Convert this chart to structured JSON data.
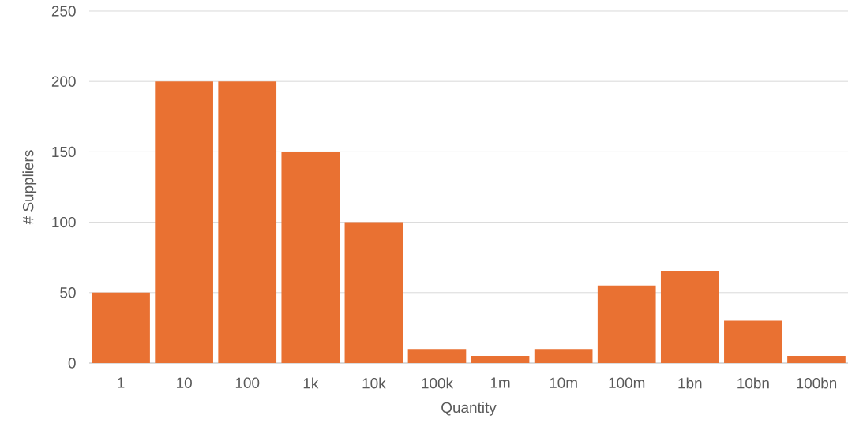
{
  "chart_data": {
    "type": "bar",
    "xlabel": "Quantity",
    "ylabel": "# Suppliers",
    "categories": [
      "1",
      "10",
      "100",
      "1k",
      "10k",
      "100k",
      "1m",
      "10m",
      "100m",
      "1bn",
      "10bn",
      "100bn"
    ],
    "values": [
      50,
      200,
      200,
      150,
      100,
      10,
      5,
      10,
      55,
      65,
      30,
      5
    ],
    "color": "#e97132",
    "ylim": [
      0,
      250
    ],
    "yticks": [
      0,
      50,
      100,
      150,
      200,
      250
    ],
    "grid": "y"
  }
}
